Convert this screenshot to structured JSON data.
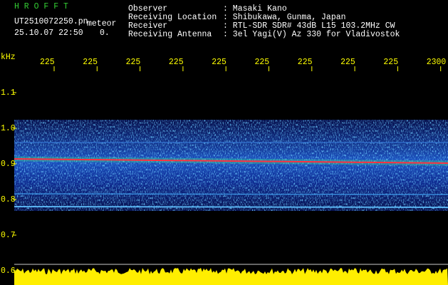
{
  "header": {
    "app_name": "H R O F F T",
    "file_name": "UT2510072250.pn",
    "mode": "meteor",
    "timestamp": "25.10.07 22:50",
    "status": "0."
  },
  "info": [
    {
      "label": "Observer",
      "value": ": Masaki Kano"
    },
    {
      "label": "Receiving Location",
      "value": ": Shibukawa, Gunma, Japan"
    },
    {
      "label": "Receiver",
      "value": ": RTL-SDR SDR# 43dB L15 103.2MHz CW"
    },
    {
      "label": "Receiving Antenna",
      "value": ": 3el Yagi(V) Az 330 for Vladivostok"
    }
  ],
  "axis": {
    "y_unit": "kHz",
    "y_labels": [
      "1.1",
      "1.0",
      "0.9",
      "0.8",
      "0.7",
      "0.6"
    ],
    "x_labels": [
      "225",
      "225",
      "225",
      "225",
      "225",
      "225",
      "225",
      "225",
      "225",
      "2300"
    ]
  }
}
